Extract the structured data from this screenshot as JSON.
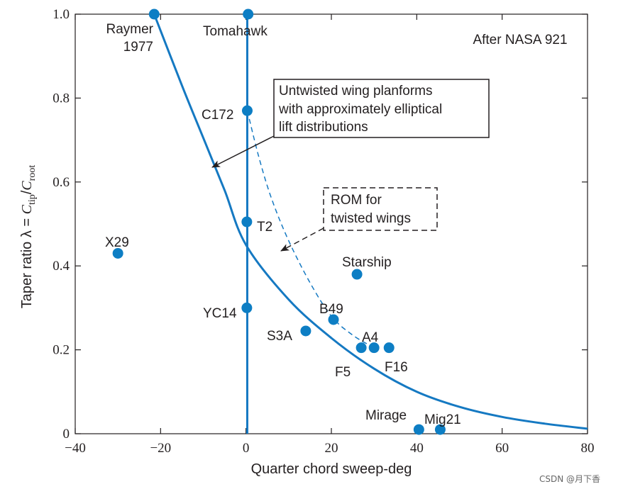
{
  "chart_data": {
    "type": "scatter",
    "source_note": "After NASA 921",
    "xlabel": "Quarter chord sweep-deg",
    "ylabel_prefix": "Taper ratio λ = ",
    "ylabel_num": "C",
    "ylabel_num_sub": "tip",
    "ylabel_slash": "/",
    "ylabel_den": "C",
    "ylabel_den_sub": "root",
    "xlim": [
      -40,
      80
    ],
    "ylim": [
      0,
      1.0
    ],
    "x_ticks": [
      -40,
      -20,
      0,
      20,
      40,
      60,
      80
    ],
    "x_tick_labels": [
      "−40",
      "−20",
      "0",
      "20",
      "40",
      "60",
      "80"
    ],
    "y_ticks": [
      0,
      0.2,
      0.4,
      0.6,
      0.8,
      1.0
    ],
    "y_tick_labels": [
      "0",
      "0.2",
      "0.4",
      "0.6",
      "0.8",
      "1.0"
    ],
    "grid": false,
    "colors": {
      "marker": "#0d7ec4",
      "curve": "#1579c2",
      "text": "#231f20"
    },
    "points": [
      {
        "label": "X29",
        "x": -30,
        "y": 0.43
      },
      {
        "label": "C172",
        "x": 0.3,
        "y": 0.77
      },
      {
        "label": "T2",
        "x": 0.2,
        "y": 0.505
      },
      {
        "label": "YC14",
        "x": 0.2,
        "y": 0.3
      },
      {
        "label": "S3A",
        "x": 14,
        "y": 0.245
      },
      {
        "label": "B49",
        "x": 20.5,
        "y": 0.272
      },
      {
        "label": "Starship",
        "x": 26,
        "y": 0.38
      },
      {
        "label": "",
        "x": 27,
        "y": 0.205
      },
      {
        "label": "",
        "x": 30,
        "y": 0.205
      },
      {
        "label": "",
        "x": 33.5,
        "y": 0.205
      },
      {
        "label": "",
        "x": 40.5,
        "y": 0.01
      },
      {
        "label": "",
        "x": 45.5,
        "y": 0.01
      },
      {
        "label": "",
        "x": -21.5,
        "y": 1.0
      },
      {
        "label": "",
        "x": 0.5,
        "y": 1.0
      }
    ],
    "extra_labels": [
      "A4",
      "F5",
      "F16",
      "Mirage",
      "Mig21"
    ],
    "curve_labels": {
      "raymer_line1": "Raymer",
      "raymer_line2": "1977",
      "tomahawk": "Tomahawk"
    },
    "raymer_curve": {
      "x": [
        -21.5,
        -15,
        -10,
        -5,
        0,
        10,
        20,
        30,
        40,
        50,
        60,
        70,
        80
      ],
      "y": [
        1.0,
        0.83,
        0.705,
        0.58,
        0.45,
        0.32,
        0.228,
        0.155,
        0.1,
        0.064,
        0.04,
        0.024,
        0.012
      ]
    },
    "rom_curve": {
      "x": [
        0.3,
        3,
        6,
        10,
        15,
        20,
        25,
        30
      ],
      "y": [
        0.77,
        0.66,
        0.56,
        0.46,
        0.36,
        0.28,
        0.235,
        0.205
      ]
    },
    "tomahawk_line_x": 0.3,
    "annotations": {
      "untwisted_lines": [
        "Untwisted wing planforms",
        "with approximately elliptical",
        "lift distributions"
      ],
      "rom_lines": [
        "ROM for",
        "twisted wings"
      ]
    }
  },
  "watermark": "CSDN @月下香"
}
